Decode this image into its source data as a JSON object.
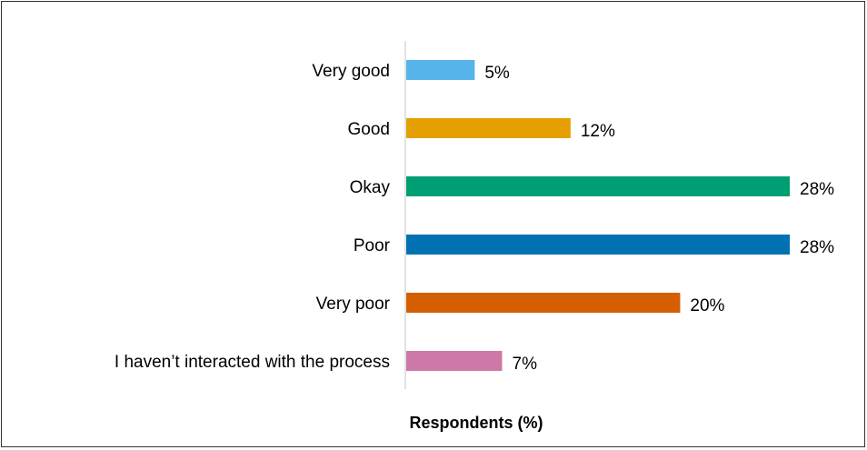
{
  "chart_data": {
    "type": "bar",
    "orientation": "horizontal",
    "categories": [
      "Very good",
      "Good",
      "Okay",
      "Poor",
      "Very poor",
      "I haven’t interacted with the process"
    ],
    "values": [
      5,
      12,
      28,
      28,
      20,
      7
    ],
    "value_labels": [
      "5%",
      "12%",
      "28%",
      "28%",
      "20%",
      "7%"
    ],
    "colors": [
      "#56B4E9",
      "#E69F00",
      "#009E73",
      "#0072B2",
      "#D55E00",
      "#CC79A7"
    ],
    "xlabel": "Respondents (%)",
    "ylabel": "",
    "xlim": [
      0,
      28
    ],
    "grid": false,
    "legend": "none"
  }
}
